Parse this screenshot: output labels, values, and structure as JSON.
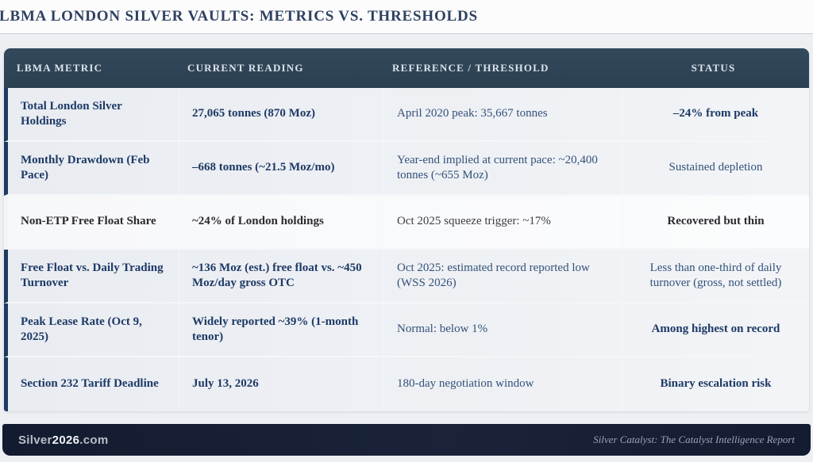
{
  "title": "LBMA LONDON SILVER VAULTS: METRICS VS. THRESHOLDS",
  "colors": {
    "header_bg": "#2d4355",
    "accent_bar": "#1d3a5e",
    "navy_text": "#1d3a66",
    "footer_bg": "#151d33",
    "page_bg": "#edeff3"
  },
  "table": {
    "columns": [
      "LBMA METRIC",
      "CURRENT READING",
      "REFERENCE / THRESHOLD",
      "STATUS"
    ],
    "rows": [
      {
        "metric": "Total London Silver Holdings",
        "current": "27,065 tonnes (870 Moz)",
        "reference": "April 2020 peak: 35,667 tonnes",
        "status": "–24% from peak",
        "status_bold": true,
        "highlight": false
      },
      {
        "metric": "Monthly Drawdown (Feb Pace)",
        "current": "–668 tonnes (~21.5 Moz/mo)",
        "reference": "Year-end implied at current pace: ~20,400 tonnes (~655 Moz)",
        "status": "Sustained depletion",
        "status_bold": false,
        "highlight": false
      },
      {
        "metric": "Non-ETP Free Float Share",
        "current": "~24% of London holdings",
        "reference": "Oct 2025 squeeze trigger: ~17%",
        "status": "Recovered but thin",
        "status_bold": true,
        "highlight": true
      },
      {
        "metric": "Free Float vs. Daily Trading Turnover",
        "current": "~136 Moz (est.) free float vs. ~450 Moz/day gross OTC",
        "reference": "Oct 2025: estimated record reported low (WSS 2026)",
        "status": "Less than one-third of daily turnover (gross, not settled)",
        "status_bold": false,
        "highlight": false
      },
      {
        "metric": "Peak Lease Rate (Oct 9, 2025)",
        "current": "Widely reported ~39% (1-month tenor)",
        "reference": "Normal: below 1%",
        "status": "Among highest on record",
        "status_bold": true,
        "highlight": false
      },
      {
        "metric": "Section 232 Tariff Deadline",
        "current": "July 13, 2026",
        "reference": "180-day negotiation window",
        "status": "Binary escalation risk",
        "status_bold": true,
        "highlight": false
      }
    ]
  },
  "footer": {
    "site_prefix": "Silver",
    "site_bold": "2026",
    "site_suffix": ".com",
    "report": "Silver Catalyst: The Catalyst Intelligence Report"
  }
}
